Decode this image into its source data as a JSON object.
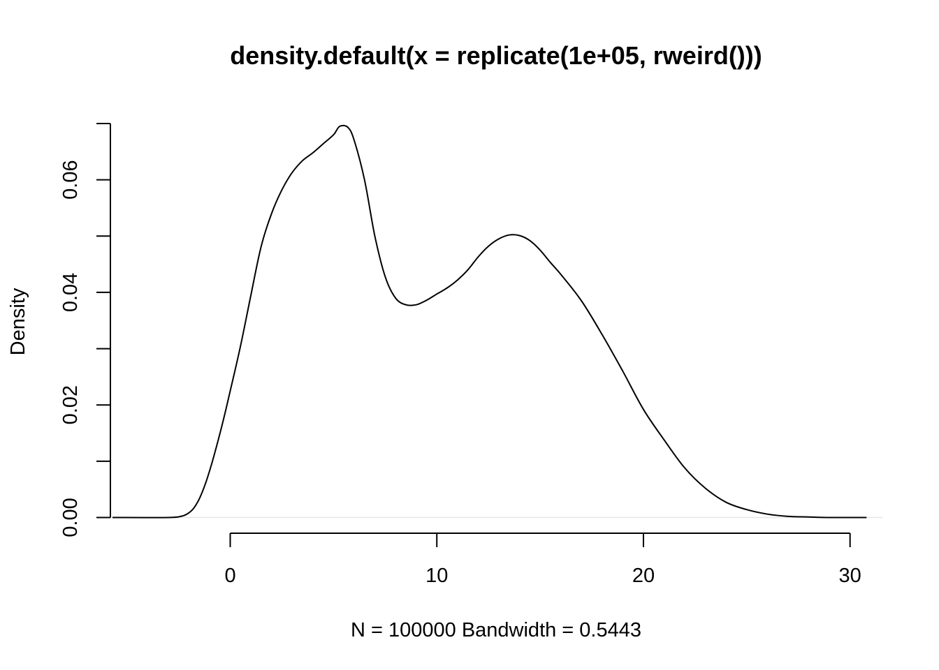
{
  "chart_data": {
    "type": "line",
    "title": "density.default(x = replicate(1e+05, rweird()))",
    "xlabel": "N = 100000   Bandwidth = 0.5443",
    "ylabel": "Density",
    "xlim": [
      -5.8,
      31.6
    ],
    "ylim": [
      0,
      0.07
    ],
    "x_ticks": [
      0,
      10,
      20,
      30
    ],
    "x_tick_labels": [
      "0",
      "10",
      "20",
      "30"
    ],
    "y_ticks": [
      0,
      0.01,
      0.02,
      0.03,
      0.04,
      0.05,
      0.06,
      0.07
    ],
    "y_tick_labels": [
      "0.00",
      "",
      "0.02",
      "",
      "0.04",
      "",
      "0.06",
      ""
    ],
    "grid": false,
    "series": [
      {
        "x": [
          -5.7,
          -3.0,
          -2.4,
          -2.1,
          -1.8,
          -1.5,
          -1.2,
          -0.9,
          -0.6,
          -0.3,
          0.0,
          0.5,
          1.0,
          1.5,
          2.0,
          2.5,
          3.0,
          3.5,
          4.0,
          4.5,
          5.0,
          5.3,
          5.7,
          6.0,
          6.5,
          7.0,
          7.5,
          8.0,
          8.5,
          9.0,
          9.5,
          10.0,
          10.5,
          11.0,
          11.5,
          12.0,
          12.5,
          13.0,
          13.5,
          14.0,
          14.5,
          15.0,
          15.5,
          16.0,
          17.0,
          18.0,
          19.0,
          20.0,
          21.0,
          22.0,
          23.0,
          24.0,
          25.0,
          26.0,
          27.0,
          28.0,
          29.0,
          30.0,
          30.8
        ],
        "y": [
          0.0,
          0.0,
          0.0002,
          0.0006,
          0.0015,
          0.0033,
          0.006,
          0.0095,
          0.0135,
          0.0178,
          0.0225,
          0.0305,
          0.0395,
          0.0482,
          0.054,
          0.0582,
          0.0613,
          0.0634,
          0.0648,
          0.0664,
          0.068,
          0.0695,
          0.0693,
          0.067,
          0.06,
          0.05,
          0.0428,
          0.039,
          0.0378,
          0.0378,
          0.0386,
          0.0397,
          0.0408,
          0.0422,
          0.044,
          0.0463,
          0.0482,
          0.0495,
          0.0502,
          0.0501,
          0.0492,
          0.0475,
          0.0453,
          0.0432,
          0.0385,
          0.0325,
          0.026,
          0.0192,
          0.0138,
          0.0088,
          0.0052,
          0.0027,
          0.0014,
          0.0006,
          0.0002,
          0.0001,
          0.0,
          0.0,
          0.0
        ]
      }
    ]
  }
}
